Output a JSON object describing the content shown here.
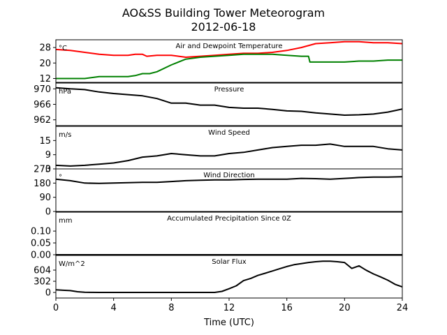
{
  "figure": {
    "title_line1": "AO&SS Building Tower Meteorogram",
    "title_line2": "2012-06-18",
    "xlabel": "Time (UTC)",
    "xticks": [
      0,
      4,
      8,
      12,
      16,
      20,
      24
    ],
    "xlim": [
      0,
      24
    ]
  },
  "chart_data": [
    {
      "type": "line",
      "title": "Air and Dewpoint Temperature",
      "unit_label": "°C",
      "ylim": [
        10,
        32
      ],
      "yticks": [
        12,
        20,
        28
      ],
      "series": [
        {
          "name": "",
          "color": "#ff0000",
          "x": [
            0,
            1,
            2,
            3,
            4,
            5,
            5.5,
            6,
            6.3,
            7,
            8,
            8.5,
            9,
            10,
            11,
            12,
            13,
            14,
            15,
            16,
            17,
            18,
            19,
            20,
            21,
            22,
            23,
            24
          ],
          "y": [
            27,
            26.5,
            25.5,
            24.5,
            24,
            24,
            24.5,
            24.5,
            23.5,
            24,
            24,
            23.5,
            23,
            23.5,
            24,
            24.5,
            25,
            25,
            25.5,
            26.5,
            28,
            30,
            30.5,
            31,
            31,
            30.5,
            30.5,
            30
          ]
        },
        {
          "name": "",
          "color": "#008000",
          "x": [
            0,
            1,
            2,
            3,
            4,
            5,
            5.5,
            6,
            6.5,
            7,
            8,
            9,
            10,
            11,
            12,
            13,
            14,
            15,
            16,
            17,
            17.5,
            17.6,
            18,
            19,
            20,
            21,
            22,
            23,
            24
          ],
          "y": [
            12,
            12,
            12,
            13,
            13,
            13,
            13.5,
            14.5,
            14.5,
            15.5,
            19,
            22,
            23,
            23.5,
            24,
            24.5,
            24.5,
            24.5,
            24,
            23.5,
            23.5,
            20.5,
            20.5,
            20.5,
            20.5,
            21,
            21,
            21.5,
            21.5
          ]
        }
      ]
    },
    {
      "type": "line",
      "title": "Pressure",
      "unit_label": "hPa",
      "ylim": [
        960.5,
        971.5
      ],
      "yticks": [
        962,
        966,
        970
      ],
      "series": [
        {
          "name": "",
          "color": "#000000",
          "x": [
            0,
            1,
            2,
            3,
            4,
            5,
            6,
            7,
            8,
            9,
            10,
            11,
            12,
            13,
            14,
            15,
            16,
            17,
            18,
            19,
            20,
            21,
            22,
            23,
            24
          ],
          "y": [
            970.3,
            970,
            969.8,
            969.2,
            968.8,
            968.5,
            968.2,
            967.5,
            966.3,
            966.3,
            965.8,
            965.8,
            965.2,
            965,
            965,
            964.7,
            964.3,
            964.2,
            963.8,
            963.5,
            963.2,
            963.3,
            963.5,
            964,
            964.8
          ]
        }
      ]
    },
    {
      "type": "line",
      "title": "Wind Speed",
      "unit_label": "m/s",
      "ylim": [
        3,
        21
      ],
      "yticks": [
        3,
        9,
        15
      ],
      "series": [
        {
          "name": "",
          "color": "#000000",
          "x": [
            0,
            1,
            2,
            3,
            4,
            5,
            6,
            7,
            8,
            9,
            10,
            11,
            12,
            13,
            14,
            15,
            16,
            17,
            18,
            19,
            20,
            21,
            22,
            23,
            24
          ],
          "y": [
            4.5,
            4.2,
            4.5,
            5,
            5.5,
            6.5,
            8,
            8.5,
            9.5,
            9,
            8.5,
            8.5,
            9.5,
            10,
            11,
            12,
            12.5,
            13,
            13,
            13.5,
            12.5,
            12.5,
            12.5,
            11.5,
            11
          ]
        }
      ]
    },
    {
      "type": "line",
      "title": "Wind Direction",
      "unit_label": "°",
      "ylim": [
        0,
        270
      ],
      "yticks": [
        0,
        90,
        180,
        270
      ],
      "series": [
        {
          "name": "",
          "color": "#000000",
          "x": [
            0,
            1,
            2,
            3,
            4,
            5,
            6,
            7,
            8,
            9,
            10,
            11,
            12,
            13,
            14,
            15,
            16,
            17,
            18,
            19,
            20,
            21,
            22,
            23,
            24
          ],
          "y": [
            205,
            195,
            180,
            178,
            180,
            183,
            185,
            185,
            190,
            195,
            198,
            200,
            200,
            203,
            205,
            205,
            205,
            210,
            208,
            205,
            210,
            215,
            218,
            218,
            220
          ]
        }
      ]
    },
    {
      "type": "line",
      "title": "Accumulated Precipitation Since 0Z",
      "unit_label": "mm",
      "ylim": [
        0,
        0.18
      ],
      "yticks": [
        0.0,
        0.05,
        0.1
      ],
      "tick_format": "2",
      "series": [
        {
          "name": "",
          "color": "#000000",
          "x": [
            0,
            24
          ],
          "y": [
            0,
            0
          ]
        }
      ]
    },
    {
      "type": "line",
      "title": "Solar Flux",
      "unit_label": "W/m^2",
      "ylim": [
        -150,
        1000
      ],
      "yticks": [
        0,
        302,
        604
      ],
      "series": [
        {
          "name": "",
          "color": "#000000",
          "x": [
            0,
            0.5,
            1,
            1.5,
            2,
            3,
            4,
            5,
            6,
            7,
            8,
            9,
            10,
            11,
            11.5,
            12,
            12.5,
            13,
            13.5,
            14,
            14.5,
            15,
            15.5,
            16,
            16.5,
            17,
            17.5,
            18,
            18.5,
            19,
            19.5,
            20,
            20.5,
            21,
            21.5,
            22,
            22.5,
            23,
            23.5,
            24
          ],
          "y": [
            70,
            60,
            50,
            20,
            5,
            0,
            0,
            0,
            0,
            0,
            0,
            0,
            0,
            0,
            30,
            100,
            180,
            320,
            380,
            460,
            520,
            580,
            640,
            700,
            750,
            780,
            810,
            830,
            845,
            845,
            830,
            810,
            650,
            720,
            600,
            500,
            420,
            330,
            220,
            150
          ]
        }
      ]
    }
  ]
}
